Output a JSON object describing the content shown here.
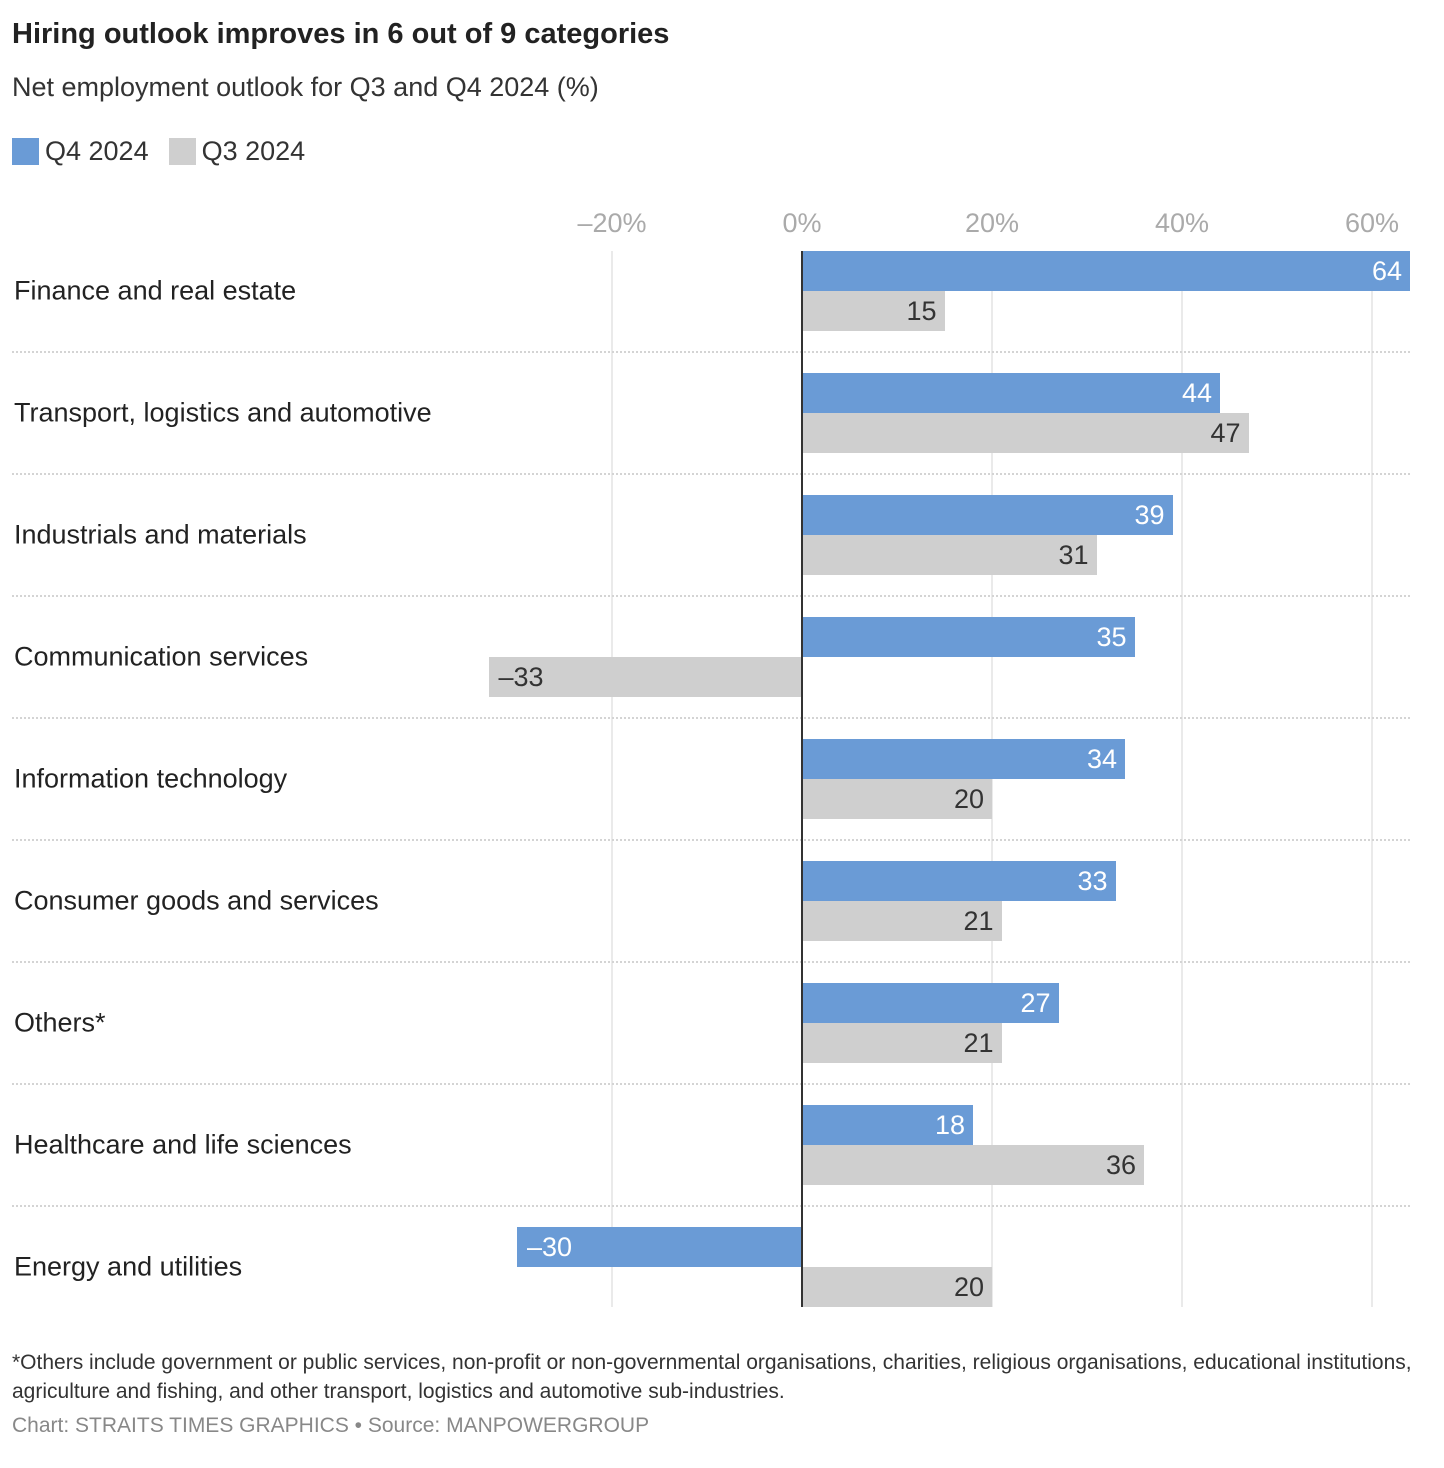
{
  "chart_data": {
    "type": "bar",
    "orientation": "horizontal",
    "title": "Hiring outlook improves in 6 out of 9 categories",
    "subtitle": "Net employment outlook for Q3 and Q4 2024 (%)",
    "categories": [
      "Finance and real estate",
      "Transport, logistics and automotive",
      "Industrials and materials",
      "Communication services",
      "Information technology",
      "Consumer goods and services",
      "Others*",
      "Healthcare and life sciences",
      "Energy and utilities"
    ],
    "series": [
      {
        "name": "Q4 2024",
        "color": "#6a9bd6",
        "values": [
          64,
          44,
          39,
          35,
          34,
          33,
          27,
          18,
          -30
        ]
      },
      {
        "name": "Q3 2024",
        "color": "#cfcfcf",
        "values": [
          15,
          47,
          31,
          -33,
          20,
          21,
          21,
          36,
          20
        ]
      }
    ],
    "value_labels": {
      "Q4 2024": [
        "64",
        "44",
        "39",
        "35",
        "34",
        "33",
        "27",
        "18",
        "–30"
      ],
      "Q3 2024": [
        "15",
        "47",
        "31",
        "–33",
        "20",
        "21",
        "21",
        "36",
        "20"
      ]
    },
    "xlim": [
      -33,
      64
    ],
    "ticks": [
      -20,
      0,
      20,
      40,
      60
    ],
    "tick_labels": [
      "–20%",
      "0%",
      "20%",
      "40%",
      "60%"
    ],
    "grid": true,
    "legend_position": "top-left"
  },
  "footnote": "*Others include government or public services, non-profit or non-governmental organisations, charities, religious organisations, educational institutions, agriculture and fishing, and other transport, logistics and automotive sub-industries.",
  "credit": "Chart: STRAITS TIMES GRAPHICS • Source: MANPOWERGROUP"
}
